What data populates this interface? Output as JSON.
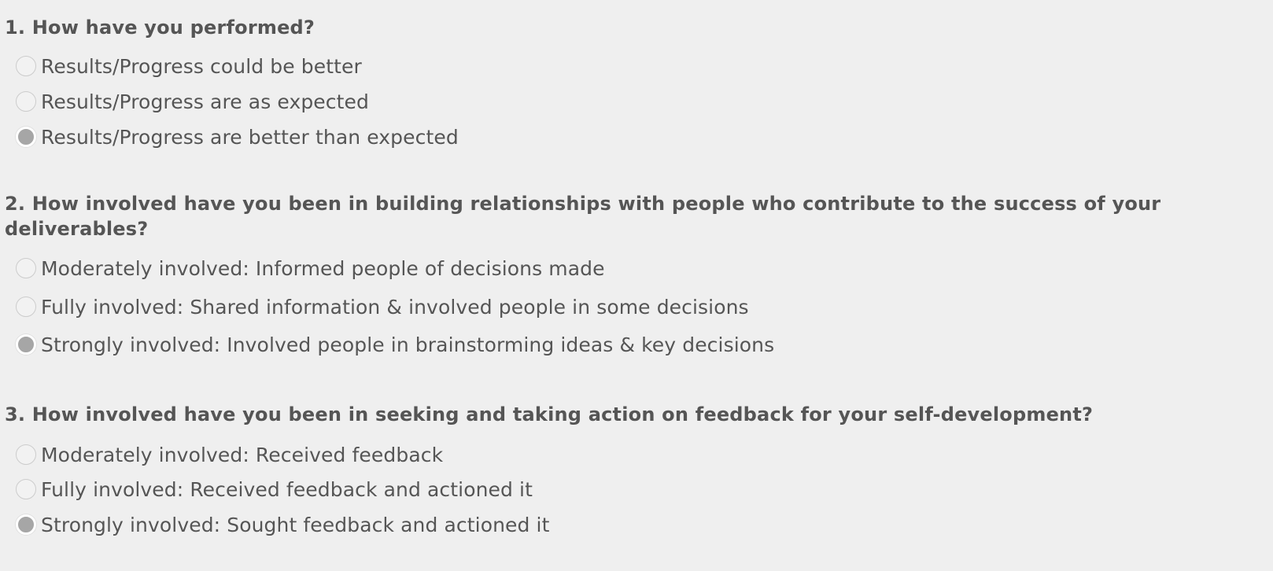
{
  "questions": [
    {
      "title": "1. How have you performed?",
      "options": [
        {
          "label": "Results/Progress could be better",
          "selected": false
        },
        {
          "label": "Results/Progress are as expected",
          "selected": false
        },
        {
          "label": "Results/Progress are better than expected",
          "selected": true
        }
      ]
    },
    {
      "title": "2. How involved have you been in building relationships with people who contribute to the success of your deliverables?",
      "options": [
        {
          "label": "Moderately involved: Informed people of decisions made",
          "selected": false
        },
        {
          "label": "Fully involved: Shared information & involved people in some decisions",
          "selected": false
        },
        {
          "label": "Strongly involved: Involved people in brainstorming ideas & key decisions",
          "selected": true
        }
      ]
    },
    {
      "title": "3. How involved have you been in seeking and taking action on feedback for your self-development?",
      "options": [
        {
          "label": "Moderately involved: Received feedback",
          "selected": false
        },
        {
          "label": "Fully involved: Received feedback and actioned it",
          "selected": false
        },
        {
          "label": "Strongly involved: Sought feedback and actioned it",
          "selected": true
        }
      ]
    }
  ],
  "colors": {
    "background": "#efefef",
    "text": "#555555",
    "radio_selected_fill": "#a6a6a6",
    "radio_border": "#cccccc"
  }
}
